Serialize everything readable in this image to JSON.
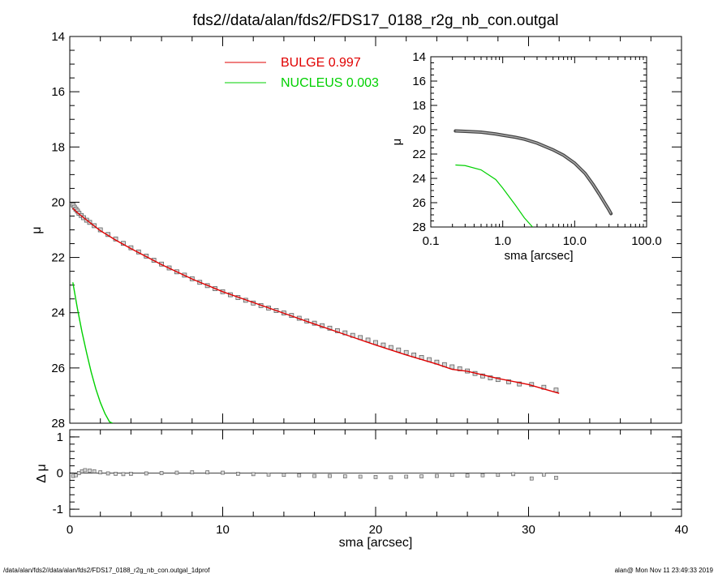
{
  "title": "fds2//data/alan/fds2/FDS17_0188_r2g_nb_con.outgal",
  "footer": {
    "left": "/data/alan/fds2//data/alan/fds2/FDS17_0188_r2g_nb_con.outgal_1dprof",
    "right": "alan@  Mon Nov 11 23:49:33 2019"
  },
  "colors": {
    "bulge": "#e00000",
    "nucleus": "#00d000",
    "data": "#606060",
    "axis": "#000000"
  },
  "legend": [
    {
      "label": "BULGE  0.997",
      "color": "#e00000"
    },
    {
      "label": "NUCLEUS  0.003",
      "color": "#00d000"
    }
  ],
  "chart_data": [
    {
      "type": "scatter",
      "panel": "main",
      "xlabel": "sma [arcsec]",
      "ylabel": "μ",
      "xlim": [
        0,
        40
      ],
      "ylim": [
        28,
        14
      ],
      "xticks": [
        "0",
        "10",
        "20",
        "30",
        "40"
      ],
      "yticks": [
        "14",
        "16",
        "18",
        "20",
        "22",
        "24",
        "26",
        "28"
      ],
      "series": [
        {
          "name": "data",
          "style": "squares",
          "x": [
            0.22,
            0.3,
            0.4,
            0.5,
            0.6,
            0.75,
            0.9,
            1.1,
            1.3,
            1.6,
            2.0,
            2.5,
            3.0,
            3.5,
            4.0,
            4.5,
            5.0,
            5.5,
            6.0,
            6.5,
            7.0,
            7.5,
            8.0,
            8.5,
            9.0,
            9.5,
            10.0,
            10.5,
            11.0,
            11.5,
            12.0,
            12.5,
            13.0,
            13.5,
            14.0,
            14.5,
            15.0,
            15.5,
            16.0,
            16.5,
            17.0,
            17.5,
            18.0,
            18.5,
            19.0,
            19.5,
            20.0,
            20.5,
            21.0,
            21.5,
            22.0,
            22.5,
            23.0,
            23.5,
            24.0,
            24.5,
            25.0,
            25.5,
            26.0,
            26.5,
            27.0,
            27.5,
            28.0,
            28.7,
            29.4,
            30.2,
            31.0,
            31.8
          ],
          "y": [
            20.1,
            20.18,
            20.25,
            20.32,
            20.4,
            20.48,
            20.56,
            20.65,
            20.73,
            20.85,
            21.0,
            21.17,
            21.33,
            21.49,
            21.65,
            21.8,
            21.95,
            22.1,
            22.24,
            22.38,
            22.52,
            22.64,
            22.77,
            22.9,
            23.02,
            23.13,
            23.24,
            23.35,
            23.45,
            23.55,
            23.65,
            23.74,
            23.83,
            23.92,
            24.01,
            24.1,
            24.2,
            24.3,
            24.38,
            24.47,
            24.56,
            24.65,
            24.73,
            24.82,
            24.9,
            24.99,
            25.08,
            25.17,
            25.26,
            25.35,
            25.44,
            25.53,
            25.62,
            25.7,
            25.79,
            25.88,
            25.96,
            26.03,
            26.11,
            26.2,
            26.29,
            26.36,
            26.42,
            26.5,
            26.58,
            26.6,
            26.7,
            26.8
          ]
        },
        {
          "name": "BULGE  0.997",
          "style": "line",
          "x": [
            0.2,
            0.5,
            1.0,
            2.0,
            3.0,
            4.0,
            6.0,
            8.0,
            10.0,
            12.0,
            14.0,
            16.0,
            18.0,
            20.0,
            22.0,
            24.0,
            25.0,
            26.0,
            28.0,
            30.0,
            32.0
          ],
          "y": [
            20.22,
            20.38,
            20.6,
            21.03,
            21.37,
            21.68,
            22.26,
            22.78,
            23.24,
            23.63,
            24.02,
            24.41,
            24.79,
            25.17,
            25.53,
            25.86,
            26.05,
            26.12,
            26.38,
            26.6,
            26.92
          ]
        },
        {
          "name": "NUCLEUS  0.003",
          "style": "line",
          "x": [
            0.2,
            0.5,
            0.8,
            1.1,
            1.4,
            1.7,
            2.0,
            2.3,
            2.6,
            2.8
          ],
          "y": [
            22.9,
            23.85,
            24.7,
            25.45,
            26.15,
            26.75,
            27.25,
            27.65,
            27.95,
            28.0
          ]
        }
      ]
    },
    {
      "type": "scatter",
      "panel": "residual",
      "xlabel": "sma [arcsec]",
      "ylabel": "Δ μ",
      "xlim": [
        0,
        40
      ],
      "ylim": [
        -1.2,
        1.2
      ],
      "yticks": [
        "1",
        "0",
        "-1"
      ],
      "series": [
        {
          "name": "residual",
          "style": "squares",
          "x": [
            0.22,
            0.4,
            0.6,
            0.8,
            1.0,
            1.3,
            1.6,
            2.0,
            2.5,
            3.0,
            3.5,
            4.0,
            5.0,
            6.0,
            7.0,
            8.0,
            9.0,
            10.0,
            11.0,
            12.0,
            13.0,
            14.0,
            15.0,
            16.0,
            17.0,
            18.0,
            19.0,
            20.0,
            21.0,
            22.0,
            23.0,
            24.0,
            25.0,
            26.0,
            27.0,
            28.0,
            29.0,
            30.2,
            31.0,
            31.8
          ],
          "y": [
            -0.08,
            -0.06,
            0.0,
            0.05,
            0.08,
            0.07,
            0.05,
            0.02,
            -0.01,
            -0.02,
            -0.03,
            -0.02,
            -0.01,
            0.0,
            0.01,
            0.02,
            0.02,
            0.01,
            -0.02,
            -0.03,
            -0.04,
            -0.05,
            -0.06,
            -0.08,
            -0.08,
            -0.09,
            -0.1,
            -0.11,
            -0.12,
            -0.1,
            -0.09,
            -0.08,
            -0.05,
            -0.07,
            -0.06,
            -0.05,
            -0.03,
            -0.15,
            -0.04,
            -0.13
          ]
        }
      ]
    },
    {
      "type": "scatter",
      "panel": "inset",
      "xlabel": "sma [arcsec]",
      "ylabel": "μ",
      "xscale": "log",
      "xlim": [
        0.1,
        100
      ],
      "ylim": [
        28,
        14
      ],
      "xticks": [
        "0.1",
        "1.0",
        "10.0",
        "100.0"
      ],
      "yticks": [
        "14",
        "16",
        "18",
        "20",
        "22",
        "24",
        "26",
        "28"
      ],
      "series": [
        {
          "name": "data",
          "style": "thick",
          "x": [
            0.22,
            0.3,
            0.5,
            0.8,
            1.0,
            1.5,
            2.0,
            3.0,
            5.0,
            7.0,
            10.0,
            14.0,
            18.0,
            22.0,
            26.0,
            30.0,
            32.0
          ],
          "y": [
            20.1,
            20.13,
            20.2,
            20.35,
            20.45,
            20.62,
            20.78,
            21.1,
            21.65,
            22.1,
            22.75,
            23.6,
            24.5,
            25.3,
            26.0,
            26.6,
            26.9
          ]
        },
        {
          "name": "nucleus",
          "style": "line",
          "x": [
            0.22,
            0.3,
            0.5,
            0.8,
            1.0,
            1.5,
            2.0,
            2.6
          ],
          "y": [
            22.9,
            22.95,
            23.3,
            24.1,
            24.8,
            26.2,
            27.25,
            28.0
          ]
        }
      ]
    }
  ]
}
